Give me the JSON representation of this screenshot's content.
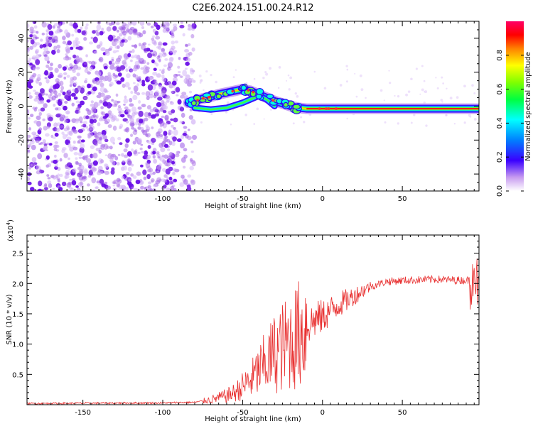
{
  "title": "C2E6.2024.151.00.24.R12",
  "colors": {
    "snr_line": "#e83030",
    "noise_dots": "#8a2be2",
    "axis": "#000000"
  },
  "chart_data": [
    {
      "type": "heatmap",
      "title": "C2E6.2024.151.00.24.R12",
      "xlabel": "Height of straight line (km)",
      "ylabel": "Frequency (Hz)",
      "xlim": [
        -185,
        98
      ],
      "ylim": [
        -50,
        50
      ],
      "xticks": [
        -150,
        -100,
        -50,
        0,
        50
      ],
      "xticklabels": [
        "-150",
        "-100",
        "-50",
        "0",
        "50"
      ],
      "yticks": [
        -40,
        -20,
        0,
        20,
        40
      ],
      "yticklabels": [
        "-40",
        "-20",
        "0",
        "20",
        "40"
      ],
      "noise_region_x": [
        -185,
        -80
      ],
      "signal_track": {
        "x": [
          -84,
          -80,
          -75,
          -70,
          -65,
          -60,
          -55,
          -50,
          -45,
          -40,
          -35,
          -30,
          -25,
          -20,
          -15,
          -10,
          -5,
          0,
          10,
          20,
          40,
          60,
          80,
          98
        ],
        "freq": [
          2,
          3,
          4.5,
          5.5,
          7,
          8,
          9,
          10,
          9,
          7,
          5,
          3,
          1.5,
          0,
          -1,
          -1.5,
          -1.5,
          -1.5,
          -1.5,
          -1.5,
          -1.5,
          -1.5,
          -1.5,
          -1.5
        ]
      },
      "secondary_track": {
        "x": [
          -80,
          -70,
          -60,
          -50,
          -45,
          -40,
          -35,
          -30
        ],
        "freq": [
          -1,
          -2,
          -1,
          2,
          4,
          6,
          4,
          0
        ]
      },
      "colorbar": {
        "label": "Normalized spectral amplitude",
        "range": [
          0,
          1
        ],
        "ticks": [
          0.0,
          0.2,
          0.4,
          0.6,
          0.8
        ],
        "ticklabels": [
          "0.0",
          "0.2",
          "0.4",
          "0.6",
          "0.8"
        ]
      }
    },
    {
      "type": "line",
      "xlabel": "Height of straight line (km)",
      "ylabel": "SNR (10 * v/v)",
      "exponent_label": "(x10",
      "exponent_power": "4",
      "exponent_close": ")",
      "xlim": [
        -185,
        98
      ],
      "ylim": [
        0,
        28000
      ],
      "xticks": [
        -150,
        -100,
        -50,
        0,
        50
      ],
      "xticklabels": [
        "-150",
        "-100",
        "-50",
        "0",
        "50"
      ],
      "yticks": [
        5000,
        10000,
        15000,
        20000,
        25000
      ],
      "yticklabels": [
        "0.5",
        "1.0",
        "1.5",
        "2.0",
        "2.5"
      ],
      "series": [
        {
          "name": "SNR",
          "x": [
            -185,
            -150,
            -100,
            -80,
            -70,
            -60,
            -55,
            -50,
            -45,
            -40,
            -35,
            -30,
            -25,
            -20,
            -15,
            -10,
            -5,
            0,
            5,
            10,
            15,
            20,
            25,
            30,
            40,
            50,
            60,
            70,
            80,
            90,
            98
          ],
          "values": [
            200,
            250,
            300,
            400,
            800,
            1500,
            2000,
            3000,
            4000,
            5500,
            7000,
            8500,
            9500,
            10500,
            11500,
            13000,
            14000,
            14500,
            15500,
            16500,
            17200,
            18000,
            18800,
            19500,
            20300,
            20500,
            20600,
            20700,
            20600,
            20500,
            20800
          ]
        }
      ]
    }
  ]
}
